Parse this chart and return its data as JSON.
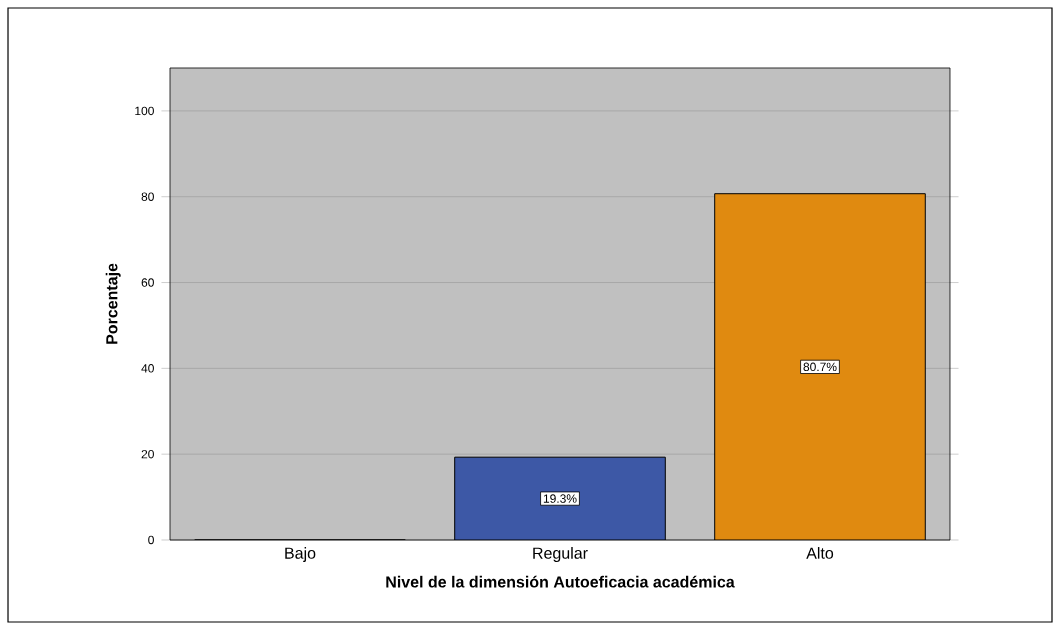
{
  "chart_data": {
    "type": "bar",
    "xlabel": "Nivel de la dimensión Autoeficacia académica",
    "ylabel": "Porcentaje",
    "categories": [
      "Bajo",
      "Regular",
      "Alto"
    ],
    "values": [
      0,
      19.3,
      80.7
    ],
    "colors": [
      "#3d58a6",
      "#3d58a6",
      "#e08a10"
    ],
    "value_labels": [
      null,
      "19.3%",
      "80.7%"
    ],
    "ylim": [
      0,
      110
    ],
    "yticks": [
      0,
      20,
      40,
      60,
      80,
      100
    ],
    "grid": "y"
  }
}
